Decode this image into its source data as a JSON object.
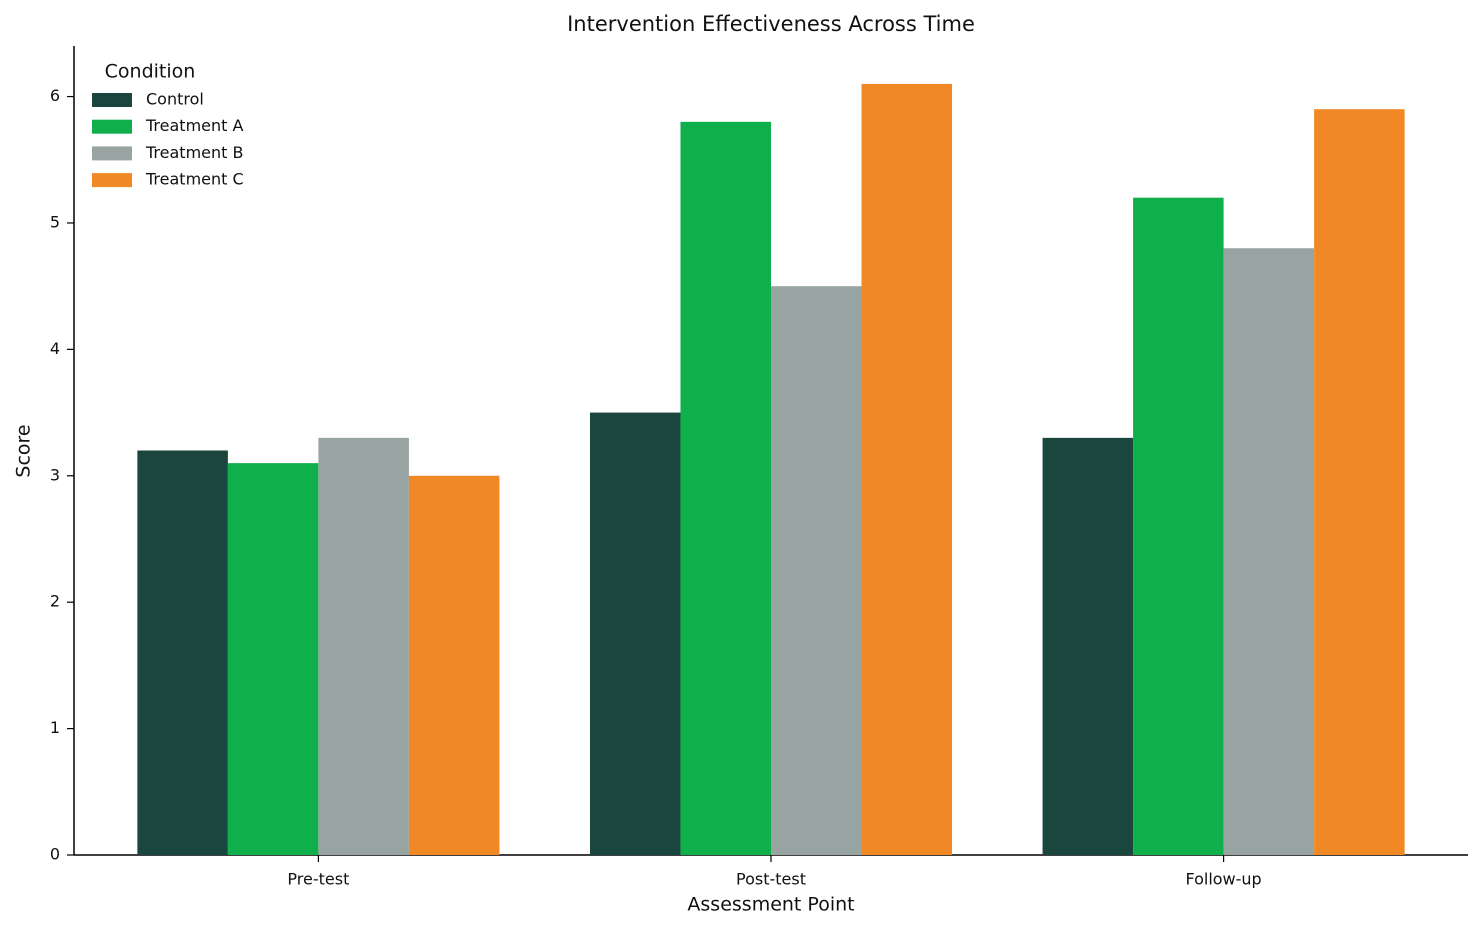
{
  "chart_data": {
    "type": "bar",
    "title": "Intervention Effectiveness Across Time",
    "x_label": "Assessment Point",
    "y_label": "Score",
    "categories": [
      "Pre-test",
      "Post-test",
      "Follow-up"
    ],
    "series": [
      {
        "name": "Control",
        "color": "#1b463d",
        "values": [
          3.2,
          3.5,
          3.3
        ]
      },
      {
        "name": "Treatment A",
        "color": "#0fb04b",
        "values": [
          3.1,
          5.8,
          5.2
        ]
      },
      {
        "name": "Treatment B",
        "color": "#98a4a1",
        "values": [
          3.3,
          4.5,
          4.8
        ]
      },
      {
        "name": "Treatment C",
        "color": "#f08826",
        "values": [
          3.0,
          6.1,
          5.9
        ]
      }
    ],
    "legend_title": "Condition",
    "legend_position": "upper left",
    "ylim": [
      0,
      6.4
    ],
    "yticks": [
      0,
      1,
      2,
      3,
      4,
      5,
      6
    ],
    "grid": false
  }
}
